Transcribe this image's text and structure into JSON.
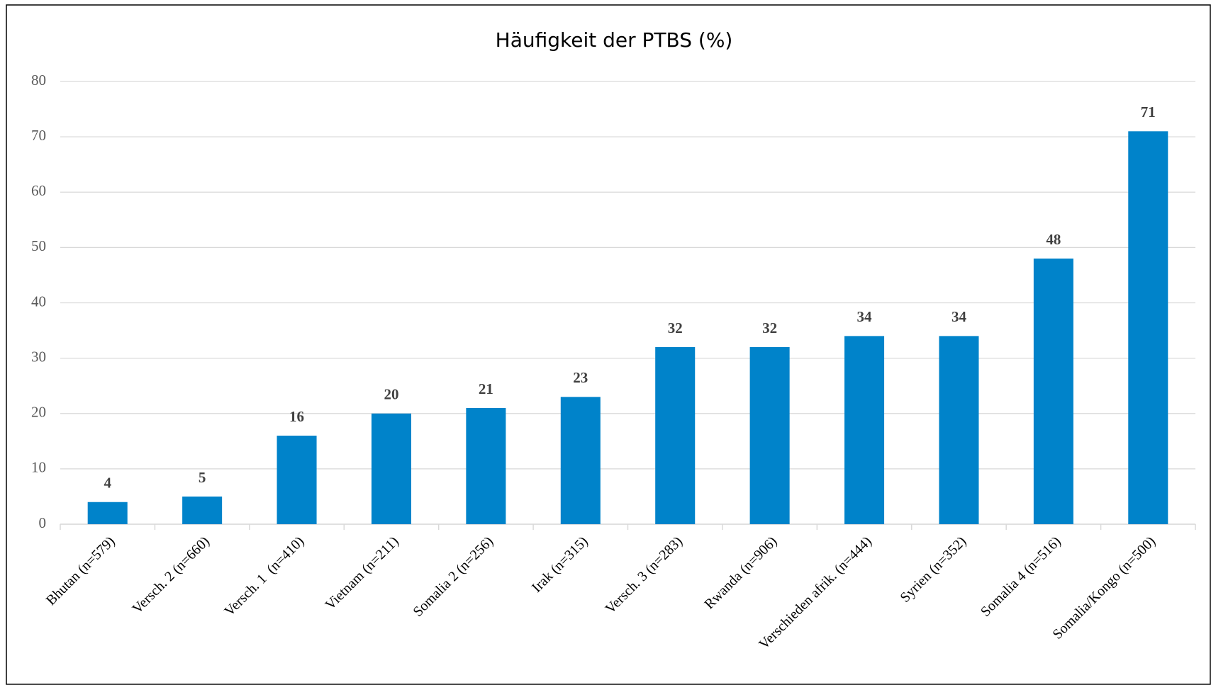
{
  "chart_data": {
    "type": "bar",
    "title": "Häufigkeit der PTBS (%)",
    "categories": [
      "Bhutan (n=579)",
      "Versch. 2 (n=660)",
      "Versch. 1  (n=410)",
      "Vietnam (n=211)",
      "Somalia 2 (n=256)",
      "Irak (n=315)",
      "Versch. 3 (n=283)",
      "Rwanda (n=906)",
      "Verschieden afrik. (n=444)",
      "Syrien (n=352)",
      "Somalia 4 (n=516)",
      "Somalia/Kongo (n=500)"
    ],
    "values": [
      4,
      5,
      16,
      20,
      21,
      23,
      32,
      32,
      34,
      34,
      48,
      71
    ],
    "color": "#0083ca",
    "ylim": [
      0,
      80
    ],
    "yticks": [
      0,
      10,
      20,
      30,
      40,
      50,
      60,
      70,
      80
    ],
    "grid": true
  }
}
